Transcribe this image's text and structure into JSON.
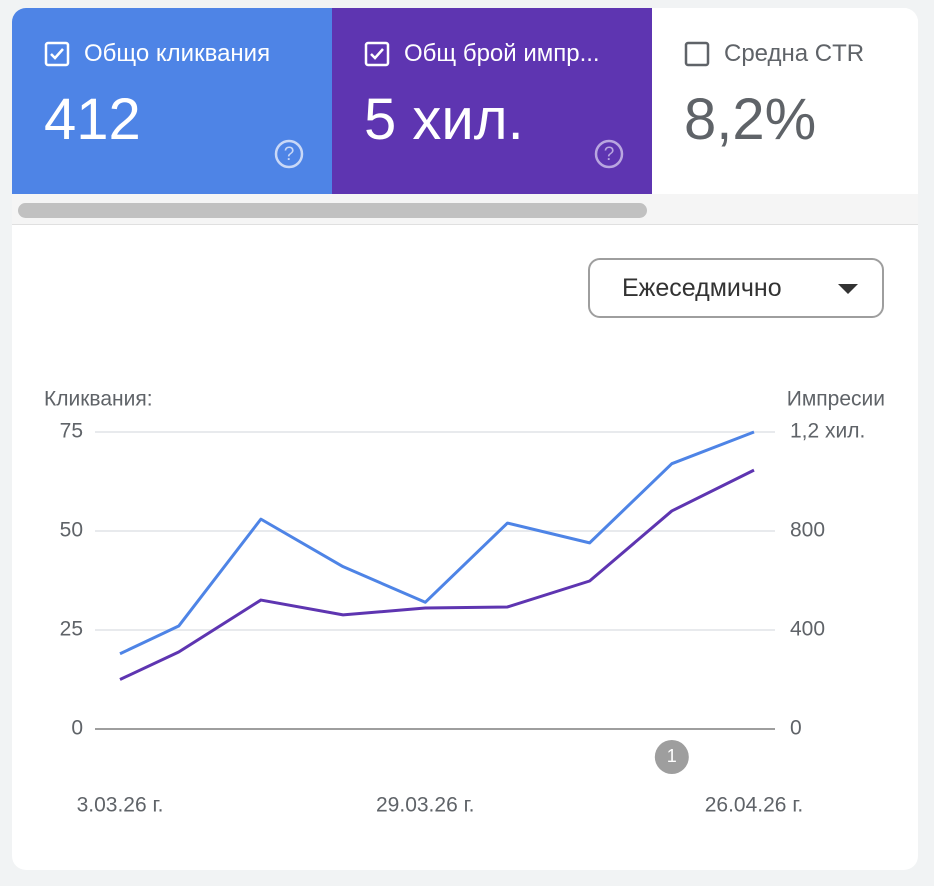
{
  "metrics": [
    {
      "value": "412"
    },
    {
      "value": "5 хил."
    },
    {
      "label": "Средна CTR",
      "value": "8,2%"
    }
  ],
  "controls": {
    "period": "Ежеседмично"
  },
  "chart_data": {
    "type": "line",
    "y_label": "Кликвания:",
    "y2_label": "Импресии",
    "x": [
      "2026-03-03",
      "2026-03-08",
      "2026-03-15",
      "2026-03-22",
      "2026-03-29",
      "2026-04-05",
      "2026-04-12",
      "2026-04-19",
      "2026-04-26"
    ],
    "xlim": [
      "2026-03-03",
      "2026-04-26"
    ],
    "xticks": [
      {
        "value": "2026-03-03",
        "label": "3.03.26 г."
      },
      {
        "value": "2026-03-29",
        "label": "29.03.26 г."
      },
      {
        "value": "2026-04-26",
        "label": "26.04.26 г."
      }
    ],
    "series": [
      {
        "name": "Общо кликвания",
        "color": "#4e84e6",
        "values": [
          19,
          26,
          53,
          41,
          32,
          52,
          47,
          67,
          75
        ]
      },
      {
        "name": "Общ брой импр...",
        "color": "#5e35b1",
        "axis": "y2",
        "values": [
          200,
          311,
          521,
          461,
          489,
          493,
          598,
          881,
          1046
        ]
      }
    ],
    "ylim": [
      0,
      75
    ],
    "yticks": [
      0,
      25,
      50,
      75
    ],
    "y2lim": [
      0,
      1200
    ],
    "y2ticks": [
      0,
      400,
      800,
      {
        "value": 1200,
        "label": "1,2 хил."
      }
    ],
    "grid": true,
    "annotations": [
      {
        "x": "2026-04-19",
        "label": "1"
      }
    ]
  }
}
